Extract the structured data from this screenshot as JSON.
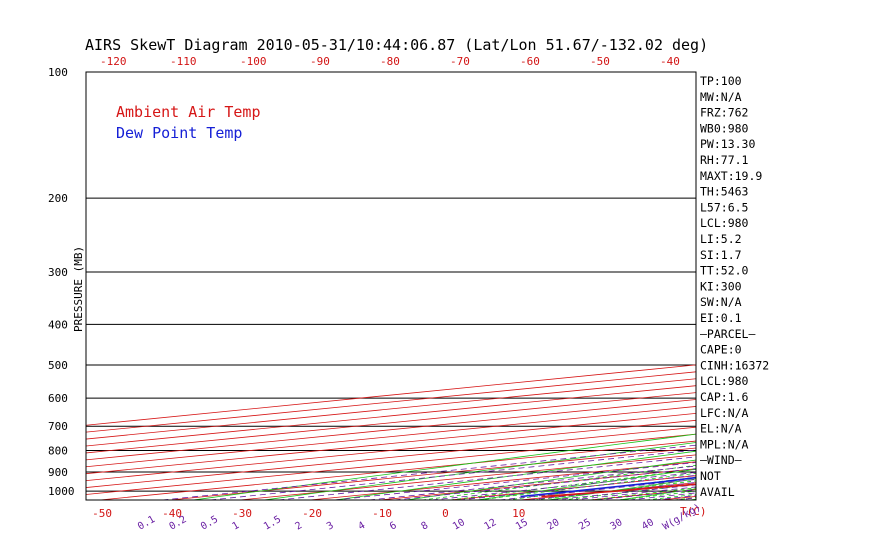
{
  "title": "AIRS SkewT Diagram 2010-05-31/10:44:06.87 (Lat/Lon 51.67/-132.02 deg)",
  "colors": {
    "temperature": "#d61616",
    "dewpoint": "#1620d6",
    "isotherm": "#d61616",
    "dry_adiabat": "#19c219",
    "moist_adiabat": "#19c219",
    "mixing_ratio": "#6a1fa3",
    "isobar": "#000000"
  },
  "legend": {
    "temperature": "Ambient Air Temp",
    "dewpoint": "Dew Point Temp"
  },
  "chart_data": {
    "type": "line",
    "title": "AIRS SkewT Diagram 2010-05-31/10:44:06.87 (Lat/Lon 51.67/-132.02 deg)",
    "ylabel": "PRESSURE (MB)",
    "y_scale": "log",
    "y_ticks": [
      100,
      200,
      300,
      400,
      500,
      600,
      700,
      800,
      900,
      1000
    ],
    "ylim": [
      1050,
      100
    ],
    "x_unit": "T(C)",
    "bottom_x_ticks": [
      -50,
      -40,
      -30,
      -20,
      -10,
      0,
      10
    ],
    "top_x_ticks": [
      -120,
      -110,
      -100,
      -90,
      -80,
      -70,
      -60,
      -50,
      -40
    ],
    "mixing_ratio_unit": "W(g/kg)",
    "mixing_ratio_labels": [
      "0.1",
      "0.2",
      "0.5",
      "1",
      "1.5",
      "2",
      "3",
      "4",
      "6",
      "8",
      "10",
      "12",
      "15",
      "20",
      "25",
      "30",
      "40"
    ],
    "series": [
      {
        "name": "Ambient Air Temp",
        "points": [
          [
            1030,
            8
          ],
          [
            1000,
            11
          ],
          [
            970,
            12
          ],
          [
            930,
            13.5
          ],
          [
            880,
            11
          ],
          [
            820,
            6
          ],
          [
            790,
            2
          ],
          [
            760,
            -1
          ],
          [
            730,
            -2
          ],
          [
            700,
            -5
          ],
          [
            660,
            -6
          ],
          [
            630,
            -7
          ],
          [
            600,
            -9
          ],
          [
            560,
            -13
          ],
          [
            500,
            -18
          ],
          [
            450,
            -23
          ],
          [
            400,
            -28
          ],
          [
            370,
            -32
          ],
          [
            340,
            -35
          ],
          [
            300,
            -38
          ],
          [
            280,
            -39
          ],
          [
            260,
            -41
          ],
          [
            240,
            -44
          ],
          [
            220,
            -46
          ],
          [
            200,
            -49
          ],
          [
            180,
            -51
          ],
          [
            160,
            -55
          ],
          [
            140,
            -59
          ],
          [
            120,
            -62
          ],
          [
            100,
            -66
          ]
        ]
      },
      {
        "name": "Dew Point Temp",
        "points": [
          [
            1030,
            5
          ],
          [
            1000,
            5
          ],
          [
            950,
            4
          ],
          [
            900,
            1
          ],
          [
            850,
            -2
          ],
          [
            800,
            -6
          ],
          [
            750,
            -9
          ],
          [
            700,
            -13
          ],
          [
            650,
            -15
          ],
          [
            600,
            -19
          ],
          [
            550,
            -26
          ],
          [
            500,
            -32
          ],
          [
            450,
            -40
          ],
          [
            420,
            -45
          ],
          [
            400,
            -49
          ],
          [
            350,
            -60
          ],
          [
            300,
            -70
          ],
          [
            250,
            -75
          ],
          [
            200,
            -83
          ],
          [
            180,
            -87
          ],
          [
            165,
            -90
          ],
          [
            155,
            -89
          ],
          [
            140,
            -90
          ],
          [
            120,
            -89
          ],
          [
            105,
            -87
          ],
          [
            100,
            -86
          ]
        ]
      }
    ]
  },
  "indices": [
    "TP:100",
    "MW:N/A",
    "FRZ:762",
    "WB0:980",
    "PW:13.30",
    "RH:77.1",
    "MAXT:19.9",
    "TH:5463",
    "L57:6.5",
    "LCL:980",
    "LI:5.2",
    "SI:1.7",
    "TT:52.0",
    "KI:300",
    "SW:N/A",
    "EI:0.1",
    "—PARCEL—",
    "CAPE:0",
    "CINH:16372",
    "LCL:980",
    "CAP:1.6",
    "LFC:N/A",
    "EL:N/A",
    "MPL:N/A",
    "—WIND—",
    "NOT",
    "AVAIL"
  ]
}
